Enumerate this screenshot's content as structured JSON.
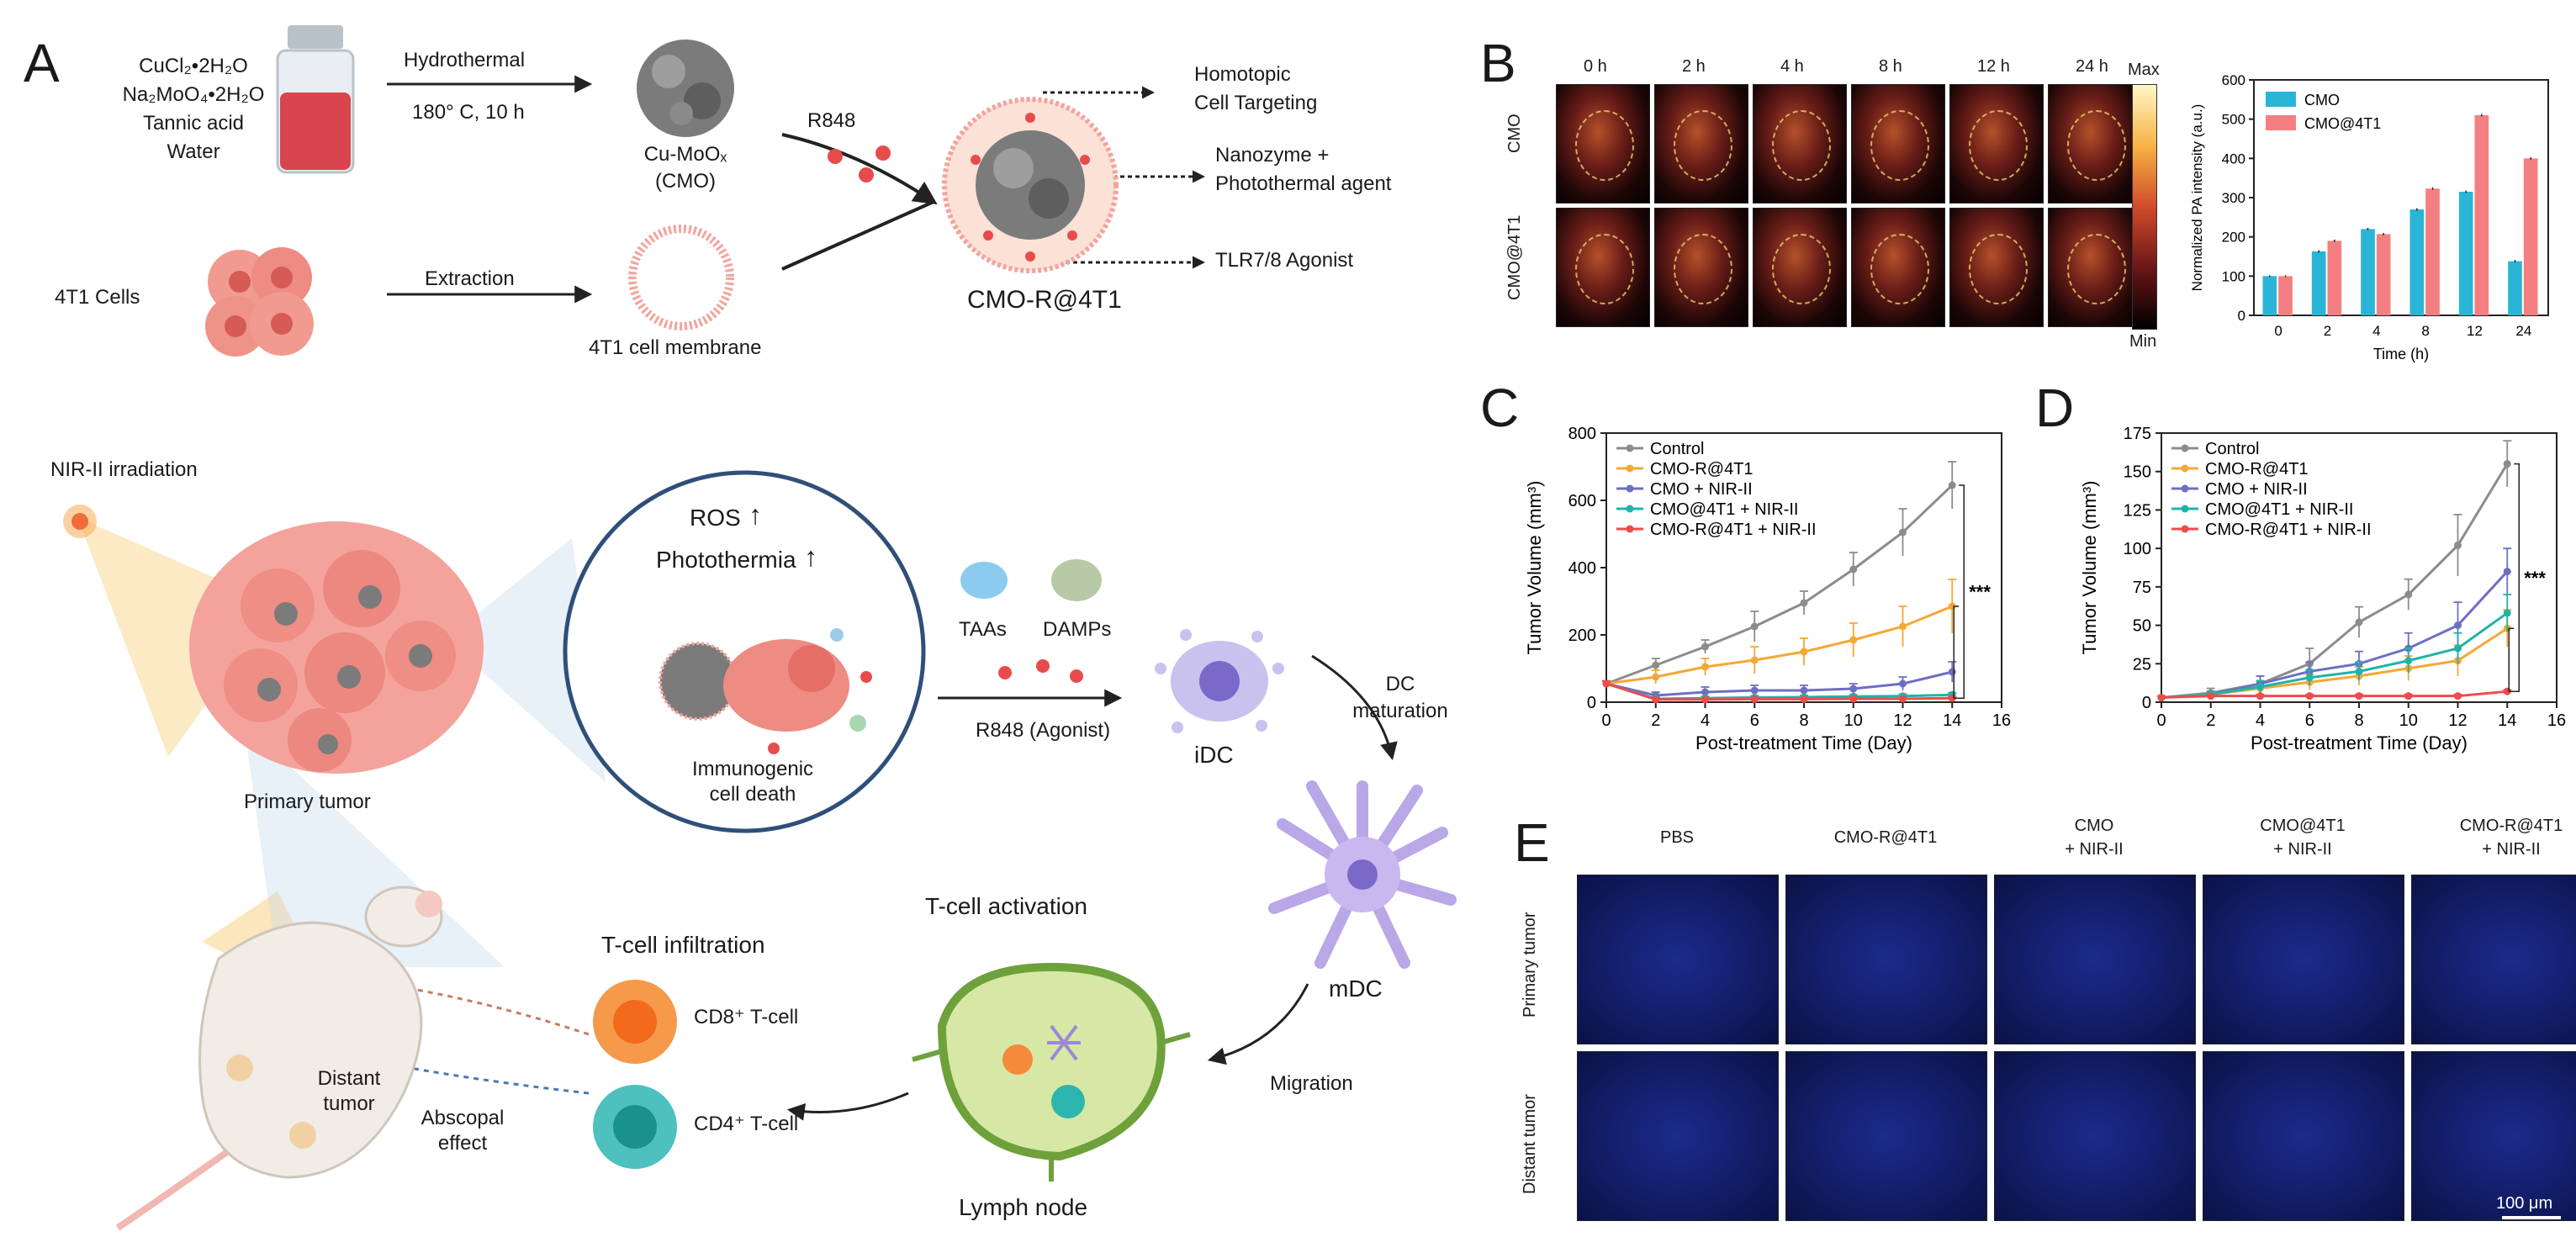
{
  "panels": {
    "A": "A",
    "B": "B",
    "C": "C",
    "D": "D",
    "E": "E"
  },
  "schematic": {
    "reagents": [
      "CuCl₂•2H₂O",
      "Na₂MoO₄•2H₂O",
      "Tannic acid",
      "Water"
    ],
    "hydrothermal": "Hydrothermal",
    "conditions": "180° C, 10 h",
    "cmo_name": "Cu-MoOₓ",
    "cmo_abbr": "(CMO)",
    "r848": "R848",
    "homotopic_1": "Homotopic",
    "homotopic_2": "Cell Targeting",
    "nanozyme_1": "Nanozyme +",
    "nanozyme_2": "Photothermal agent",
    "tlr": "TLR7/8 Agonist",
    "cells": "4T1 Cells",
    "extraction": "Extraction",
    "membrane": "4T1 cell membrane",
    "product": "CMO-R@4T1",
    "nir": "NIR-II irradiation",
    "ros": "ROS",
    "photothermia": "Photothermia",
    "icd_1": "Immunogenic",
    "icd_2": "cell death",
    "primary_tumor": "Primary tumor",
    "taas": "TAAs",
    "damps": "DAMPs",
    "agonist": "R848 (Agonist)",
    "idc": "iDC",
    "dc_1": "DC",
    "dc_2": "maturation",
    "mdc": "mDC",
    "migration": "Migration",
    "tcell_activation": "T-cell activation",
    "lymph_node": "Lymph node",
    "tcell_infiltration": "T-cell infiltration",
    "cd8": "CD8⁺ T-cell",
    "cd4": "CD4⁺ T-cell",
    "distant_1": "Distant",
    "distant_2": "tumor",
    "abscopal_1": "Abscopal",
    "abscopal_2": "effect"
  },
  "panel_b": {
    "times": [
      "0 h",
      "2 h",
      "4 h",
      "8 h",
      "12 h",
      "24 h"
    ],
    "rows": [
      "CMO",
      "CMO@4T1"
    ],
    "scale_max": "Max",
    "scale_min": "Min",
    "colors": {
      "CMO": "#29b6d6",
      "CMO@4T1": "#f47f82"
    }
  },
  "panel_e": {
    "columns": [
      [
        "PBS"
      ],
      [
        "CMO-R@4T1"
      ],
      [
        "CMO",
        "+ NIR-II"
      ],
      [
        "CMO@4T1",
        "+ NIR-II"
      ],
      [
        "CMO-R@4T1",
        "+ NIR-II"
      ]
    ],
    "rows": [
      "Primary tumor",
      "Distant tumor"
    ],
    "scalebar": "100 μm"
  },
  "chart_data": [
    {
      "type": "bar",
      "panel": "B",
      "categories": [
        "0",
        "2",
        "4",
        "8",
        "12",
        "24"
      ],
      "series": [
        {
          "name": "CMO",
          "values": [
            100,
            163,
            220,
            270,
            315,
            138
          ],
          "errors": [
            2,
            3,
            3,
            3,
            3,
            3
          ]
        },
        {
          "name": "CMO@4T1",
          "values": [
            100,
            190,
            207,
            323,
            510,
            400
          ],
          "errors": [
            2,
            3,
            3,
            3,
            3,
            3
          ]
        }
      ],
      "xlabel": "Time (h)",
      "ylabel": "Normalized PA intensity (a.u.)",
      "ylim": [
        0,
        600
      ],
      "yticks": [
        0,
        100,
        200,
        300,
        400,
        500,
        600
      ],
      "legend": "top-left"
    },
    {
      "type": "line",
      "panel": "C",
      "x": [
        0,
        2,
        4,
        6,
        8,
        10,
        12,
        14
      ],
      "series": [
        {
          "name": "Control",
          "color": "#8c8c8c",
          "values": [
            55,
            110,
            165,
            225,
            295,
            395,
            505,
            645
          ],
          "errors": [
            8,
            20,
            20,
            45,
            35,
            50,
            70,
            70
          ]
        },
        {
          "name": "CMO-R@4T1",
          "color": "#f4a836",
          "values": [
            55,
            75,
            105,
            125,
            150,
            185,
            225,
            285
          ],
          "errors": [
            8,
            20,
            25,
            40,
            40,
            50,
            60,
            80
          ]
        },
        {
          "name": "CMO + NIR-II",
          "color": "#6d6fc2",
          "values": [
            55,
            20,
            30,
            35,
            35,
            40,
            55,
            90
          ],
          "errors": [
            8,
            10,
            15,
            15,
            15,
            15,
            20,
            30
          ]
        },
        {
          "name": "CMO@4T1 + NIR-II",
          "color": "#1fb3a8",
          "values": [
            55,
            10,
            12,
            14,
            15,
            17,
            18,
            22
          ],
          "errors": [
            8,
            5,
            5,
            5,
            5,
            5,
            6,
            6
          ]
        },
        {
          "name": "CMO-R@4T1 + NIR-II",
          "color": "#ef4b4b",
          "values": [
            55,
            8,
            8,
            9,
            9,
            10,
            10,
            12
          ],
          "errors": [
            8,
            4,
            4,
            4,
            4,
            4,
            4,
            4
          ]
        }
      ],
      "xlabel": "Post-treatment Time (Day)",
      "ylabel": "Tumor Volume (mm³)",
      "xlim": [
        0,
        16
      ],
      "ylim": [
        0,
        800
      ],
      "xticks": [
        0,
        2,
        4,
        6,
        8,
        10,
        12,
        14,
        16
      ],
      "yticks": [
        0,
        200,
        400,
        600,
        800
      ],
      "significance": "***",
      "legend": "top-left"
    },
    {
      "type": "line",
      "panel": "D",
      "x": [
        0,
        2,
        4,
        6,
        8,
        10,
        12,
        14
      ],
      "series": [
        {
          "name": "Control",
          "color": "#8c8c8c",
          "values": [
            3,
            6,
            12,
            25,
            52,
            70,
            102,
            155
          ],
          "errors": [
            1,
            3,
            5,
            10,
            10,
            10,
            20,
            15
          ]
        },
        {
          "name": "CMO-R@4T1",
          "color": "#f4a836",
          "values": [
            3,
            5,
            9,
            13,
            17,
            22,
            27,
            48
          ],
          "errors": [
            1,
            2,
            4,
            5,
            6,
            8,
            10,
            12
          ]
        },
        {
          "name": "CMO + NIR-II",
          "color": "#6d6fc2",
          "values": [
            3,
            5,
            12,
            20,
            25,
            35,
            50,
            85
          ],
          "errors": [
            1,
            2,
            5,
            6,
            8,
            10,
            15,
            15
          ]
        },
        {
          "name": "CMO@4T1 + NIR-II",
          "color": "#1fb3a8",
          "values": [
            3,
            5,
            10,
            16,
            20,
            27,
            35,
            58
          ],
          "errors": [
            1,
            2,
            4,
            5,
            6,
            8,
            10,
            12
          ]
        },
        {
          "name": "CMO-R@4T1 + NIR-II",
          "color": "#ef4b4b",
          "values": [
            3,
            4,
            4,
            4,
            4,
            4,
            4,
            7
          ],
          "errors": [
            1,
            1,
            1,
            1,
            1,
            1,
            1,
            1
          ]
        }
      ],
      "xlabel": "Post-treatment Time (Day)",
      "ylabel": "Tumor Volume (mm³)",
      "xlim": [
        0,
        16
      ],
      "ylim": [
        0,
        175
      ],
      "xticks": [
        0,
        2,
        4,
        6,
        8,
        10,
        12,
        14,
        16
      ],
      "yticks": [
        0,
        25,
        50,
        75,
        100,
        125,
        150,
        175
      ],
      "significance": "***",
      "legend": "top-left"
    }
  ]
}
